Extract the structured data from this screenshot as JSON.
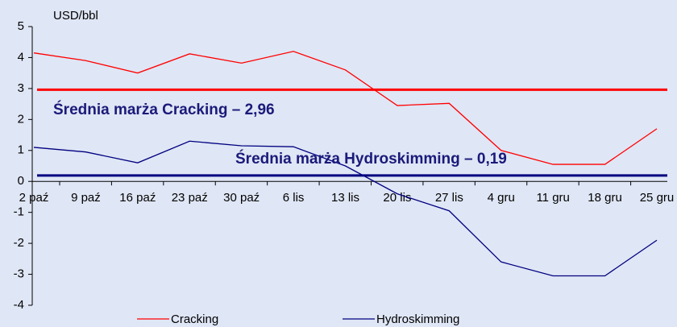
{
  "chart_data": {
    "type": "line",
    "y_label": "USD/bbl",
    "categories": [
      "2 paź",
      "9 paź",
      "16 paź",
      "23 paź",
      "30 paź",
      "6 lis",
      "13 lis",
      "20 lis",
      "27 lis",
      "4 gru",
      "11 gru",
      "18 gru",
      "25 gru"
    ],
    "series": [
      {
        "name": "Cracking",
        "color": "#ff0000",
        "values": [
          4.15,
          3.9,
          3.5,
          4.12,
          3.82,
          4.2,
          3.6,
          2.45,
          2.52,
          1.0,
          0.55,
          0.55,
          1.7
        ]
      },
      {
        "name": "Hydroskimming",
        "color": "#000080",
        "values": [
          1.1,
          0.95,
          0.6,
          1.3,
          1.15,
          1.12,
          0.5,
          -0.4,
          -0.95,
          -2.6,
          -3.05,
          -3.05,
          -1.9
        ]
      }
    ],
    "reference_lines": [
      {
        "label": "Średnia marża Cracking – 2,96",
        "value": 2.96,
        "color": "#ff0000"
      },
      {
        "label": "Średnia marża Hydroskimming – 0,19",
        "value": 0.19,
        "color": "#000080"
      }
    ],
    "ylim": [
      -4,
      5
    ],
    "yticks": [
      -4,
      -3,
      -2,
      -1,
      0,
      1,
      2,
      3,
      4,
      5
    ],
    "legend": "bottom"
  }
}
